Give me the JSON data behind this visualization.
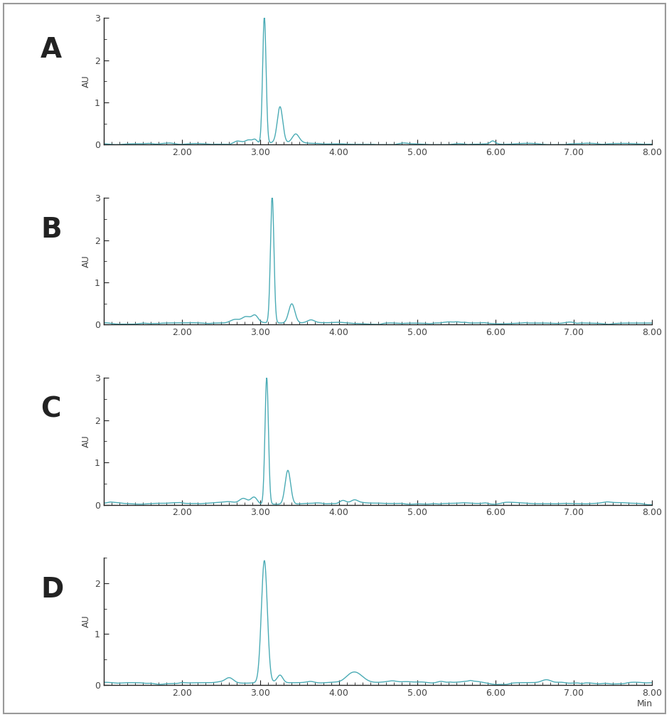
{
  "line_color": "#4AABB5",
  "background_color": "#ffffff",
  "border_color": "#333333",
  "label_color": "#444444",
  "tick_color": "#222222",
  "panel_labels": [
    "A",
    "B",
    "C",
    "D"
  ],
  "xlim": [
    1.0,
    8.0
  ],
  "xticks": [
    1.0,
    2.0,
    3.0,
    4.0,
    5.0,
    6.0,
    7.0,
    8.0
  ],
  "xlabel": "Min",
  "ylabel": "AU",
  "ylim_ABC": [
    0.0,
    3.0
  ],
  "ylim_D": [
    0.0,
    2.5
  ],
  "yticks_ABC": [
    0.0,
    1.0,
    2.0,
    3.0
  ],
  "yticks_D": [
    0.0,
    1.0,
    2.0
  ],
  "line_width": 1.0,
  "figsize": [
    9.41,
    10.08
  ],
  "dpi": 100,
  "outer_border_color": "#aaaaaa",
  "panel_label_fontsize": 28,
  "axis_label_fontsize": 9,
  "tick_fontsize": 9
}
